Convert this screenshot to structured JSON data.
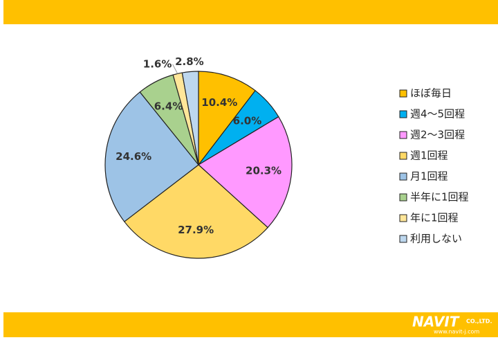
{
  "chart_data": {
    "type": "pie",
    "categories": [
      "ほぼ毎日",
      "週4～5回程",
      "週2～3回程",
      "週1回程",
      "月1回程",
      "半年に1回程",
      "年に1回程",
      "利用しない"
    ],
    "values": [
      10.4,
      6.0,
      20.3,
      27.9,
      24.6,
      6.4,
      1.6,
      2.8
    ],
    "value_labels": [
      "10.4%",
      "6.0%",
      "20.3%",
      "27.9%",
      "24.6%",
      "6.4%",
      "1.6%",
      "2.8%"
    ],
    "colors": [
      "#FFC000",
      "#00B0F0",
      "#FF99FF",
      "#FFD966",
      "#9DC3E6",
      "#A9D18E",
      "#FFE699",
      "#BDD7EE"
    ],
    "legend": "right"
  },
  "logo": {
    "name": "NAVIT",
    "suffix": "CO.,LTD.",
    "url": "www.navit-j.com"
  }
}
